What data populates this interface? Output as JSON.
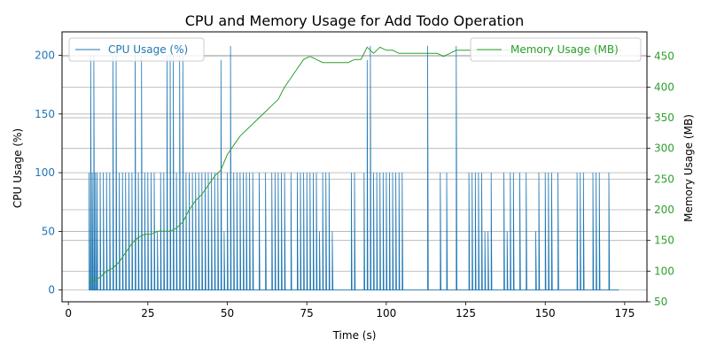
{
  "chart_data": {
    "type": "line",
    "title": "CPU and Memory Usage for Add Todo Operation",
    "xlabel": "Time (s)",
    "ylabel_left": "CPU Usage (%)",
    "ylabel_right": "Memory Usage (MB)",
    "xlim": [
      -2,
      182
    ],
    "ylim_left": [
      -10,
      220
    ],
    "ylim_right": [
      50,
      490
    ],
    "x_ticks": [
      0,
      25,
      50,
      75,
      100,
      125,
      150,
      175
    ],
    "y_ticks_left": [
      0,
      50,
      100,
      150,
      200
    ],
    "y_ticks_right": [
      50,
      100,
      150,
      200,
      250,
      300,
      350,
      400,
      450
    ],
    "grid": true,
    "colors": {
      "cpu": "#1f77b4",
      "memory": "#2ca02c"
    },
    "legend_left": {
      "label": "CPU Usage (%)",
      "placement": "upper-left"
    },
    "legend_right": {
      "label": "Memory Usage (MB)",
      "placement": "upper-right"
    },
    "series": [
      {
        "name": "CPU Usage (%)",
        "axis": "left",
        "note_pattern": "rapid spikes between ~0 and ~100 with occasional ~200 peaks",
        "x": [
          6.5,
          7,
          7.5,
          8,
          8.5,
          9,
          10,
          11,
          12,
          13,
          14,
          15,
          16,
          17,
          18,
          19,
          20,
          21,
          22,
          23,
          24,
          25,
          26,
          27,
          28,
          29,
          30,
          31,
          32,
          33,
          34,
          35,
          36,
          37,
          38,
          39,
          40,
          41,
          42,
          43,
          44,
          45,
          46,
          47,
          48,
          49,
          50,
          51,
          52,
          53,
          54,
          55,
          56,
          57,
          58,
          60,
          62,
          64,
          65,
          66,
          67,
          68,
          70,
          72,
          73,
          74,
          75,
          76,
          77,
          78,
          79,
          80,
          81,
          82,
          83,
          89,
          90,
          93,
          94,
          95,
          96,
          97,
          98,
          99,
          100,
          101,
          102,
          103,
          104,
          105,
          113,
          117,
          119,
          122,
          126,
          127,
          128,
          129,
          130,
          131,
          132,
          133,
          137,
          138,
          139,
          140,
          142,
          144,
          147,
          148,
          150,
          151,
          152,
          154,
          160,
          161,
          162,
          165,
          166,
          167,
          170,
          173
        ],
        "y": [
          100,
          200,
          100,
          200,
          100,
          100,
          100,
          100,
          100,
          100,
          200,
          200,
          100,
          100,
          100,
          100,
          100,
          210,
          100,
          200,
          100,
          100,
          100,
          100,
          50,
          100,
          100,
          200,
          200,
          200,
          100,
          200,
          200,
          100,
          100,
          100,
          100,
          100,
          100,
          100,
          100,
          100,
          100,
          100,
          196,
          50,
          100,
          208,
          100,
          100,
          100,
          100,
          100,
          100,
          100,
          100,
          100,
          100,
          100,
          100,
          100,
          100,
          100,
          100,
          100,
          100,
          100,
          100,
          100,
          100,
          50,
          100,
          100,
          100,
          50,
          100,
          100,
          100,
          196,
          208,
          100,
          100,
          100,
          100,
          100,
          100,
          100,
          100,
          100,
          100,
          208,
          100,
          100,
          208,
          100,
          100,
          100,
          100,
          100,
          50,
          50,
          100,
          100,
          50,
          100,
          100,
          100,
          100,
          50,
          100,
          100,
          100,
          100,
          100,
          100,
          100,
          100,
          100,
          100,
          100,
          100,
          0
        ]
      },
      {
        "name": "Memory Usage (MB)",
        "axis": "right",
        "x": [
          6.5,
          8,
          10,
          12,
          14,
          16,
          18,
          20,
          22,
          24,
          26,
          28,
          30,
          32,
          34,
          36,
          38,
          40,
          42,
          44,
          46,
          48,
          50,
          52,
          54,
          56,
          58,
          60,
          62,
          64,
          66,
          68,
          70,
          72,
          74,
          76,
          78,
          80,
          82,
          84,
          86,
          88,
          90,
          92,
          94,
          96,
          98,
          100,
          102,
          104,
          106,
          108,
          110,
          112,
          114,
          116,
          118,
          120,
          122,
          124,
          126,
          128,
          130,
          132,
          134,
          136,
          138,
          140,
          142,
          144,
          146,
          148,
          150,
          152,
          154,
          156,
          158,
          160,
          162,
          164,
          166,
          168,
          170,
          172,
          174
        ],
        "y": [
          80,
          85,
          90,
          100,
          105,
          115,
          130,
          145,
          155,
          160,
          160,
          165,
          165,
          165,
          170,
          180,
          200,
          215,
          225,
          240,
          255,
          265,
          290,
          305,
          320,
          330,
          340,
          350,
          360,
          370,
          380,
          400,
          415,
          430,
          445,
          450,
          445,
          440,
          440,
          440,
          440,
          440,
          445,
          445,
          465,
          455,
          465,
          460,
          460,
          455,
          455,
          455,
          455,
          455,
          455,
          455,
          450,
          455,
          460,
          460,
          460,
          460,
          460,
          460,
          460,
          460,
          460,
          460,
          460,
          460,
          460,
          460,
          460,
          460,
          460,
          460,
          460,
          460,
          460,
          460,
          460,
          460,
          460,
          460,
          460
        ]
      }
    ]
  }
}
